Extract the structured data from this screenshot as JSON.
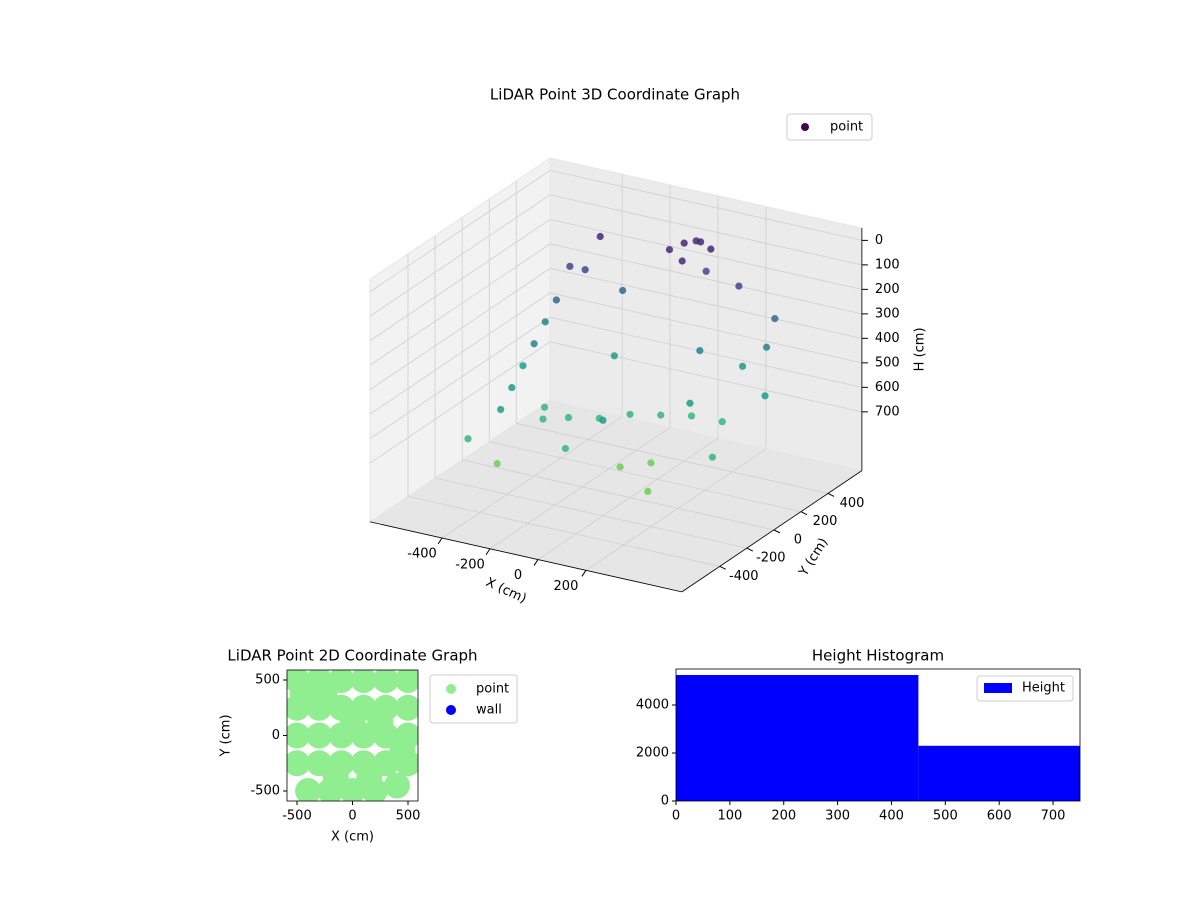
{
  "chart_data": [
    {
      "type": "scatter3d",
      "title": "LiDAR Point 3D Coordinate Graph",
      "xlabel": "X (cm)",
      "ylabel": "Y (cm)",
      "zlabel": "H (cm)",
      "xlim": [
        -700,
        600
      ],
      "ylim": [
        -680,
        650
      ],
      "zlim": [
        940,
        -50
      ],
      "xticks": [
        -400,
        -200,
        0,
        200
      ],
      "yticks": [
        -400,
        -200,
        0,
        200,
        400
      ],
      "zticks": [
        0,
        100,
        200,
        300,
        400,
        500,
        600,
        700
      ],
      "colormap": "viridis",
      "legend": "upper right",
      "series": [
        {
          "name": "point",
          "color": "#440154",
          "x": [
            -420,
            -420,
            -410,
            -400,
            -390,
            -380,
            -370,
            -300,
            -200,
            -100,
            0,
            100,
            200,
            300,
            0,
            50,
            100,
            -50,
            20,
            80,
            120,
            -450,
            -300,
            -100,
            100,
            200,
            300,
            400,
            450,
            400,
            350,
            -200,
            -300,
            -250,
            150,
            250,
            0,
            -150,
            300,
            -350,
            200
          ],
          "y": [
            300,
            200,
            100,
            0,
            -100,
            -200,
            -300,
            -100,
            -100,
            -50,
            0,
            50,
            100,
            150,
            400,
            400,
            420,
            380,
            350,
            380,
            350,
            -400,
            -450,
            -300,
            -250,
            -200,
            -400,
            -100,
            200,
            300,
            450,
            300,
            200,
            -200,
            250,
            0,
            -200,
            150,
            300,
            400,
            450
          ],
          "z": [
            200,
            300,
            350,
            400,
            450,
            500,
            550,
            600,
            620,
            620,
            600,
            600,
            600,
            620,
            50,
            30,
            60,
            80,
            100,
            20,
            120,
            650,
            700,
            650,
            700,
            680,
            700,
            650,
            500,
            350,
            300,
            250,
            150,
            600,
            400,
            500,
            550,
            450,
            450,
            100,
            200
          ]
        }
      ]
    },
    {
      "type": "scatter",
      "title": "LiDAR Point 2D Coordinate Graph",
      "xlabel": "X (cm)",
      "ylabel": "Y (cm)",
      "xlim": [
        -590,
        590
      ],
      "ylim": [
        -590,
        590
      ],
      "xticks": [
        -500,
        0,
        500
      ],
      "yticks": [
        -500,
        0,
        500
      ],
      "legend": "outside right",
      "series": [
        {
          "name": "point",
          "color": "#90ee90",
          "x": [
            -500,
            -300,
            -100,
            100,
            300,
            500,
            -500,
            -300,
            -100,
            100,
            300,
            500,
            -500,
            -300,
            -100,
            100,
            300,
            500,
            -500,
            -300,
            -100,
            100,
            300,
            500,
            -400,
            -200,
            0,
            200,
            400,
            -450,
            -250,
            0,
            250,
            450,
            -150,
            150
          ],
          "y": [
            500,
            500,
            500,
            500,
            500,
            500,
            250,
            250,
            250,
            250,
            250,
            250,
            0,
            0,
            0,
            0,
            0,
            0,
            -250,
            -250,
            -250,
            -250,
            -250,
            -250,
            -500,
            -500,
            -500,
            -500,
            -450,
            380,
            380,
            120,
            120,
            -120,
            -380,
            -380
          ]
        },
        {
          "name": "wall",
          "color": "#0000ff",
          "x": [],
          "y": []
        }
      ]
    },
    {
      "type": "histogram",
      "title": "Height Histogram",
      "bins": [
        0,
        450,
        750
      ],
      "xlim": [
        0,
        750
      ],
      "ylim": [
        0,
        5500
      ],
      "xticks": [
        0,
        100,
        200,
        300,
        400,
        500,
        600,
        700
      ],
      "yticks": [
        0,
        2000,
        4000
      ],
      "legend": "upper right",
      "series": [
        {
          "name": "Height",
          "color": "#0000ff",
          "values": [
            5250,
            2300
          ]
        }
      ]
    }
  ]
}
